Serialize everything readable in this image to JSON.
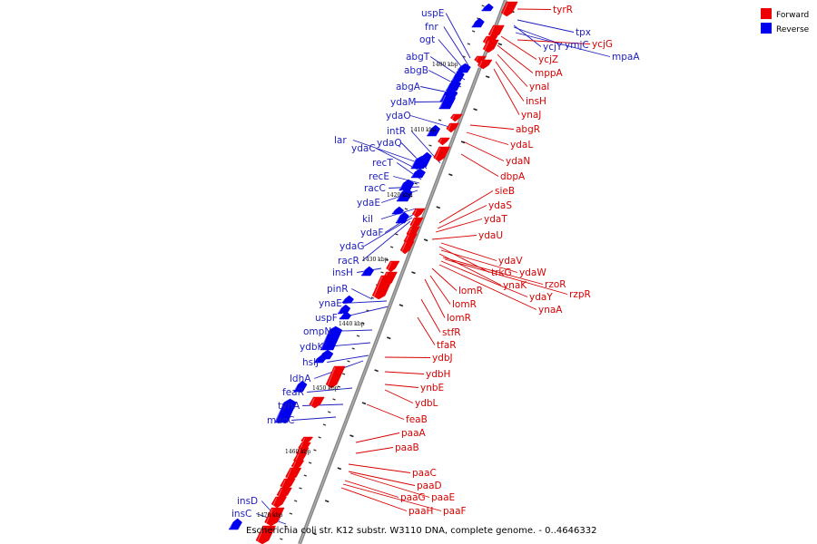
{
  "caption": "Escherichia coli str. K12 substr. W3110 DNA, complete genome. - 0..4646332",
  "legend": [
    {
      "label": "Forward",
      "color": "#ee0000"
    },
    {
      "label": "Reverse",
      "color": "#0000ee"
    }
  ],
  "colors": {
    "forward": "#ee0000",
    "forward_label": "#d80000",
    "reverse": "#0000ee",
    "reverse_label": "#1d1dbf",
    "backbone": "#888888"
  },
  "ticks": [
    "1400 kbp",
    "1410 kbp",
    "1420 kbp",
    "1430 kbp",
    "1440 kbp",
    "1450 kbp",
    "1460 kbp",
    "1470 kbp"
  ],
  "reverse_genes": [
    "uspE",
    "fnr",
    "ogt",
    "abgT",
    "abgB",
    "abgA",
    "ydaM",
    "ydaO",
    "intR",
    "lar",
    "ydaQ",
    "ydaC",
    "recT",
    "recE",
    "racC",
    "ydaE",
    "kil",
    "ydaF",
    "ydaG",
    "racR",
    "insH",
    "pinR",
    "ynaE",
    "uspF",
    "ompN",
    "ydbK",
    "hslJ",
    "ldhA",
    "feaR",
    "tynA",
    "maoC",
    "insD",
    "insC",
    "tpx",
    "ycjY",
    "ymjC",
    "mpaA"
  ],
  "forward_genes": [
    "tyrR",
    "ycjG",
    "ycjZ",
    "mppA",
    "ynaI",
    "insH",
    "ynaJ",
    "abgR",
    "ydaL",
    "ydaN",
    "dbpA",
    "sieB",
    "ydaS",
    "ydaT",
    "ydaU",
    "ydaV",
    "trkG",
    "ydaW",
    "ynaK",
    "rzoR",
    "rzpR",
    "ydaY",
    "ynaA",
    "lomR",
    "lomR",
    "lomR",
    "stfR",
    "tfaR",
    "ydbJ",
    "ydbH",
    "ynbE",
    "ydbL",
    "feaB",
    "paaA",
    "paaB",
    "paaC",
    "paaD",
    "paaG",
    "paaE",
    "paaH",
    "paaF"
  ]
}
